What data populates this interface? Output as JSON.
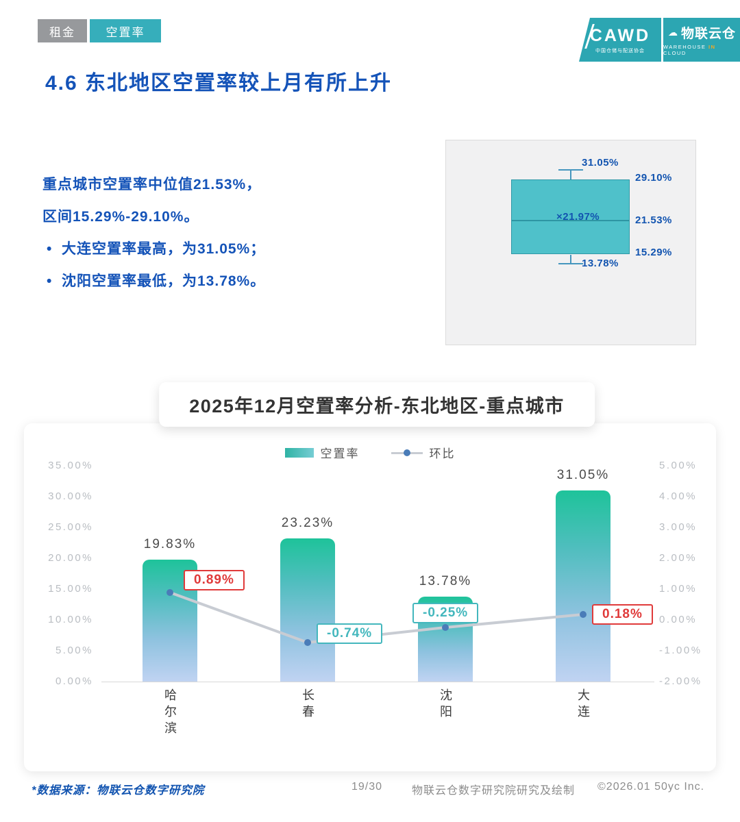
{
  "tabs": {
    "rent": "租金",
    "vacancy": "空置率"
  },
  "logo": {
    "cawd": "CAWD",
    "cawd_sub": "中国仓储与配送协会",
    "cloud_glyph": "☁",
    "brand": "物联云仓",
    "brand_sub_w": "WAREHOUSE",
    "brand_sub_in": "IN",
    "brand_sub_c": "CLOUD"
  },
  "page_title": "4.6 东北地区空置率较上月有所上升",
  "summary": {
    "bullet": "•",
    "line1": "重点城市空置率中位值21.53%，",
    "line2": "区间15.29%-29.10%。",
    "bullet1": "大连空置率最高，为31.05%；",
    "bullet2": "沈阳空置率最低，为13.78%。"
  },
  "chart_data": [
    {
      "type": "boxplot",
      "series_name": "空置率",
      "whisker_high": 31.05,
      "q3": 29.1,
      "median": 21.53,
      "mean": 21.97,
      "q1": 15.29,
      "whisker_low": 13.78,
      "labels": {
        "whisker_high": "31.05%",
        "q3": "29.10%",
        "median": "21.53%",
        "mean": "21.97%",
        "mean_marker": "×",
        "q1": "15.29%",
        "whisker_low": "13.78%"
      }
    },
    {
      "type": "bar+line",
      "title": "2025年12月空置率分析-东北地区-重点城市",
      "categories": [
        "哈尔滨",
        "长春",
        "沈阳",
        "大连"
      ],
      "series": [
        {
          "name": "空置率",
          "type": "bar",
          "axis": "left",
          "values": [
            19.83,
            23.23,
            13.78,
            31.05
          ],
          "labels": [
            "19.83%",
            "23.23%",
            "13.78%",
            "31.05%"
          ]
        },
        {
          "name": "环比",
          "type": "line",
          "axis": "right",
          "values": [
            0.89,
            -0.74,
            -0.25,
            0.18
          ],
          "labels": [
            "0.89%",
            "-0.74%",
            "-0.25%",
            "0.18%"
          ]
        }
      ],
      "left_axis": {
        "min": 0,
        "max": 35,
        "step": 5,
        "ticks": [
          "35.00%",
          "30.00%",
          "25.00%",
          "20.00%",
          "15.00%",
          "10.00%",
          "5.00%",
          "0.00%"
        ]
      },
      "right_axis": {
        "min": -2,
        "max": 5,
        "step": 1,
        "ticks": [
          "5.00%",
          "4.00%",
          "3.00%",
          "2.00%",
          "1.00%",
          "0.00%",
          "-1.00%",
          "-2.00%"
        ]
      },
      "grid": false,
      "legend_position": "top"
    }
  ],
  "footer": {
    "source": "*数据来源：物联云仓数字研究院",
    "page": "19/30",
    "credit": "物联云仓数字研究院研究及绘制",
    "copyright": "©2026.01 50yc Inc."
  },
  "colors": {
    "title_blue": "#1453B8",
    "tab_gray": "#97999C",
    "teal": "#36AEBB",
    "boxplot_fill": "#4FC1CA",
    "bar_top": "#1EC39A",
    "bar_bottom": "#C0D3F2",
    "line_gray": "#C8CCD3",
    "dot_blue": "#4A7CB8",
    "delta_pos_red": "#E03A3A",
    "delta_neg_teal": "#43B7BD",
    "axis_label_gray": "#B9BDC2"
  }
}
